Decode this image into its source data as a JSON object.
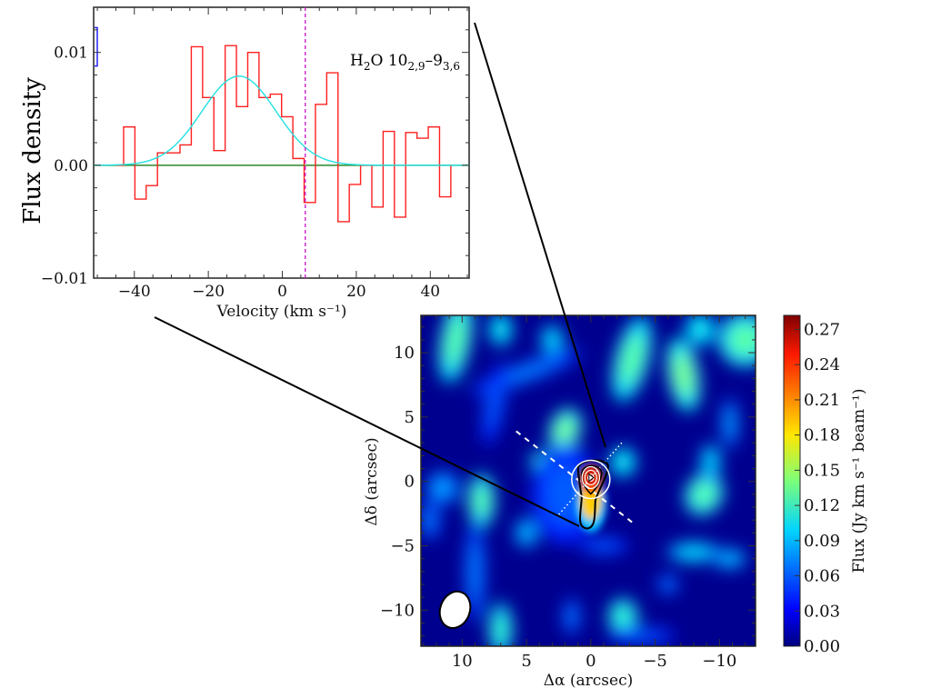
{
  "chart_data": [
    {
      "type": "line",
      "title": "",
      "annotation": "H2O 10(2,9)-9(3,6)",
      "annotation_parts": {
        "main": "H",
        "sub1": "2",
        "o": "O 10",
        "sub2": "2,9",
        "dash": "–9",
        "sub3": "3,6"
      },
      "xlabel": "Velocity (km s⁻¹)",
      "ylabel": "Flux density",
      "xlim": [
        -51,
        50.5
      ],
      "ylim": [
        -0.01,
        0.014
      ],
      "xticks": [
        -40,
        -20,
        0,
        20,
        40
      ],
      "xtick_labels": [
        "−40",
        "−20",
        "0",
        "20",
        "40"
      ],
      "yticks": [
        -0.01,
        0.0,
        0.01
      ],
      "ytick_labels": [
        "−0.01",
        "0.00",
        "0.01"
      ],
      "series": [
        {
          "name": "spectrum",
          "style": "step",
          "color": "#ff2020",
          "bin_start": -42.9,
          "bin_width": 3.05,
          "values": [
            0.0034,
            -0.003,
            -0.0018,
            0.0011,
            0.0011,
            0.0018,
            0.0105,
            0.006,
            0.0013,
            0.0106,
            0.0052,
            0.01,
            0.006,
            0.0063,
            0.0043,
            0.0006,
            -0.0033,
            0.0054,
            0.0082,
            -0.005,
            -0.0017,
            0.0,
            -0.0037,
            0.003,
            -0.0046,
            0.0029,
            0.0024,
            0.0034,
            -0.0028
          ]
        },
        {
          "name": "gaussian fit",
          "color": "#22e0e0",
          "amplitude": 0.0079,
          "center": -11.7,
          "sigma": 10.0
        },
        {
          "name": "baseline",
          "color": "#2a8a2a",
          "value": 0.0
        }
      ],
      "vline": {
        "x": 6.2,
        "color": "#cc22cc",
        "style": "dashed"
      },
      "error_bar": {
        "x": -50.5,
        "y_low": 0.0088,
        "y_high": 0.0122,
        "color": "#2222ff"
      }
    },
    {
      "type": "heatmap",
      "xlabel": "Δα (arcsec)",
      "ylabel": "Δδ (arcsec)",
      "xlim": [
        13.2,
        -12.8
      ],
      "ylim": [
        -12.8,
        12.9
      ],
      "xticks": [
        10,
        5,
        0,
        -5,
        -10
      ],
      "xtick_labels": [
        "10",
        "5",
        "0",
        "−5",
        "−10"
      ],
      "yticks": [
        10,
        5,
        0,
        -5,
        -10
      ],
      "ytick_labels": [
        "10",
        "5",
        "0",
        "−5",
        "−10"
      ],
      "colorbar": {
        "label": "Flux (Jy km s⁻¹ beam⁻¹)",
        "range": [
          0,
          0.282
        ],
        "ticks": [
          0,
          0.03,
          0.06,
          0.09,
          0.12,
          0.15,
          0.18,
          0.21,
          0.24,
          0.27
        ],
        "tick_labels": [
          "0.00",
          "0.03",
          "0.06",
          "0.09",
          "0.12",
          "0.15",
          "0.18",
          "0.21",
          "0.24",
          "0.27"
        ],
        "colormap": "jet"
      },
      "emission": [
        [
          10.5,
          11,
          0.9,
          2.6,
          10,
          0.13
        ],
        [
          7,
          11.8,
          0.7,
          1,
          0,
          0.11
        ],
        [
          3,
          11,
          0.7,
          0.9,
          0,
          0.1
        ],
        [
          -3.2,
          9.5,
          1.0,
          2.6,
          15,
          0.13
        ],
        [
          -7.2,
          8.3,
          0.9,
          2.2,
          -10,
          0.14
        ],
        [
          -12,
          11,
          1.6,
          1.6,
          0,
          0.13
        ],
        [
          -8.5,
          11.8,
          0.9,
          1,
          0,
          0.11
        ],
        [
          5,
          8.5,
          3.5,
          0.6,
          -20,
          0.07
        ],
        [
          7.5,
          6,
          0.6,
          2.5,
          10,
          0.06
        ],
        [
          -10.8,
          4.5,
          0.5,
          1.5,
          0,
          0.08
        ],
        [
          2,
          4,
          0.9,
          1.3,
          20,
          0.14
        ],
        [
          3.8,
          1.5,
          0.7,
          0.7,
          0,
          0.12
        ],
        [
          -2.5,
          1.5,
          0.8,
          0.9,
          0,
          0.11
        ],
        [
          8.5,
          -1.5,
          0.8,
          1.6,
          0,
          0.13
        ],
        [
          11.5,
          -0.5,
          1,
          1,
          0,
          0.08
        ],
        [
          5,
          -4,
          0.7,
          0.9,
          0,
          0.09
        ],
        [
          -8.8,
          -1,
          1.1,
          1.3,
          30,
          0.13
        ],
        [
          -9.3,
          1.5,
          0.6,
          1.1,
          0,
          0.1
        ],
        [
          -8,
          -5.5,
          1.6,
          0.6,
          0,
          0.1
        ],
        [
          -10.8,
          -6,
          1,
          0.6,
          0,
          0.09
        ],
        [
          7,
          -11.5,
          0.7,
          1.6,
          0,
          0.12
        ],
        [
          -2.5,
          -10.5,
          0.9,
          1.1,
          0,
          0.12
        ],
        [
          -6,
          -8,
          0.6,
          0.6,
          0,
          0.07
        ],
        [
          1.5,
          -10.5,
          0.5,
          1.1,
          0,
          0.07
        ],
        [
          9,
          -7,
          0.6,
          3,
          0,
          0.07
        ],
        [
          -1,
          -5,
          1.5,
          0.5,
          0,
          0.06
        ],
        [
          12.5,
          -3,
          0.6,
          1.2,
          0,
          0.07
        ],
        [
          -4,
          -12,
          2,
          0.5,
          0,
          0.06
        ],
        [
          2,
          -1,
          2,
          3,
          0,
          0.06
        ]
      ],
      "source": {
        "alpha": 0,
        "delta": 0.3,
        "peak": 0.28
      },
      "beam": {
        "alpha": 10.55,
        "delta": -9.97,
        "major": 1.45,
        "minor": 1.15,
        "pa_deg": 20
      }
    }
  ]
}
